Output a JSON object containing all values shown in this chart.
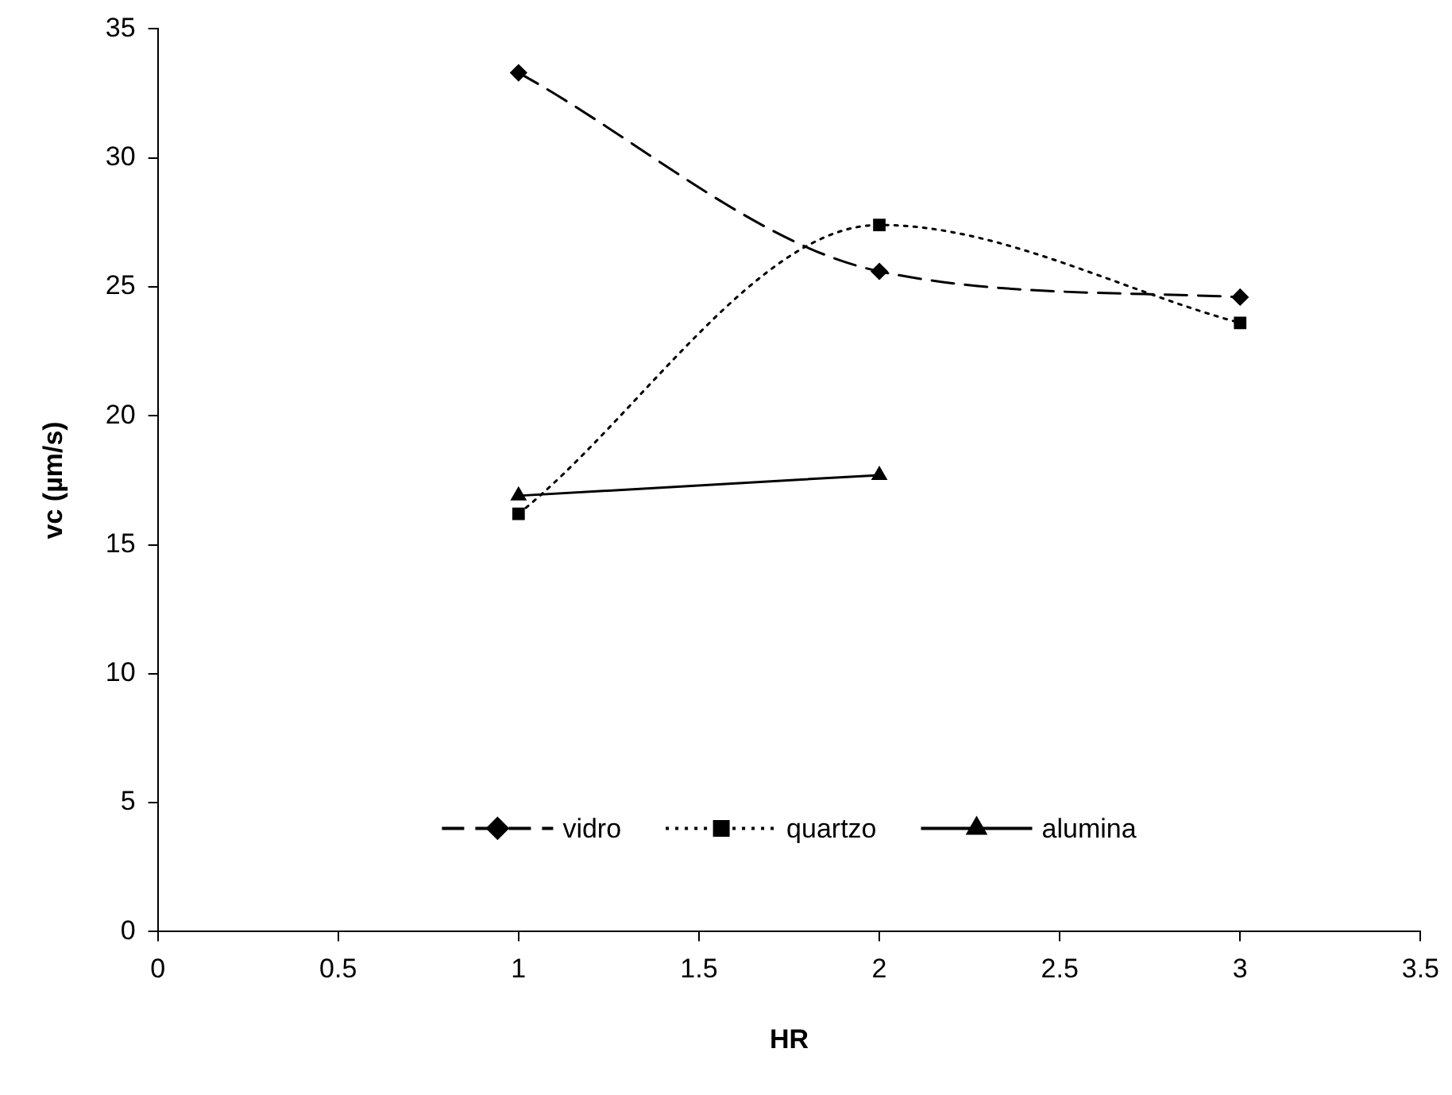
{
  "chart_data": {
    "type": "line",
    "xlabel": "HR",
    "ylabel": "vc (µm/s)",
    "x": [
      1,
      2,
      3
    ],
    "xlim": [
      0,
      3.5
    ],
    "xticks": [
      0,
      0.5,
      1,
      1.5,
      2,
      2.5,
      3,
      3.5
    ],
    "ylim": [
      0,
      35
    ],
    "yticks": [
      0,
      5,
      10,
      15,
      20,
      25,
      30,
      35
    ],
    "grid": false,
    "legend": "bottom",
    "series": [
      {
        "name": "vidro",
        "color": "#000000",
        "values": [
          33.3,
          25.6,
          24.6
        ],
        "marker": "diamond",
        "line_style": "dashed"
      },
      {
        "name": "quartzo",
        "color": "#000000",
        "values": [
          16.2,
          27.4,
          23.6
        ],
        "marker": "square",
        "line_style": "dotted"
      },
      {
        "name": "alumina",
        "color": "#000000",
        "values": [
          16.9,
          17.7,
          null
        ],
        "marker": "triangle",
        "line_style": "solid"
      }
    ]
  }
}
